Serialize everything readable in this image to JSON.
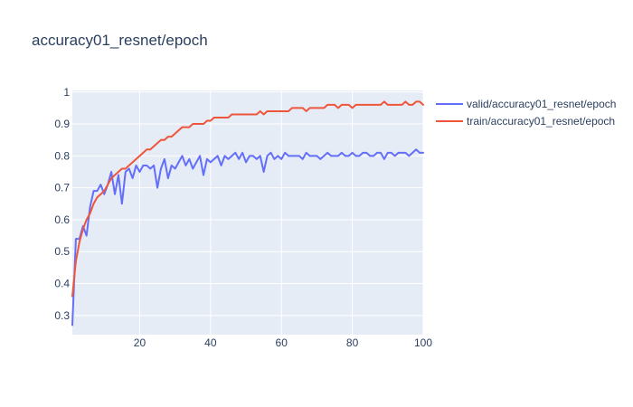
{
  "chart_data": {
    "type": "line",
    "title": "accuracy01_resnet/epoch",
    "xlabel": "",
    "ylabel": "",
    "xlim": [
      1,
      100
    ],
    "ylim": [
      0.24,
      1.005
    ],
    "xticks": [
      20,
      40,
      60,
      80,
      100
    ],
    "yticks": [
      0.3,
      0.4,
      0.5,
      0.6,
      0.7,
      0.8,
      0.9,
      1
    ],
    "grid": true,
    "legend_position": "right",
    "colors": {
      "plot_bg": "#e5ecf6",
      "grid": "#ffffff",
      "text": "#2a3f5f"
    },
    "series": [
      {
        "name": "valid/accuracy01_resnet/epoch",
        "color": "#636efa",
        "x": [
          1,
          2,
          3,
          4,
          5,
          6,
          7,
          8,
          9,
          10,
          11,
          12,
          13,
          14,
          15,
          16,
          17,
          18,
          19,
          20,
          21,
          22,
          23,
          24,
          25,
          26,
          27,
          28,
          29,
          30,
          31,
          32,
          33,
          34,
          35,
          36,
          37,
          38,
          39,
          40,
          41,
          42,
          43,
          44,
          45,
          46,
          47,
          48,
          49,
          50,
          51,
          52,
          53,
          54,
          55,
          56,
          57,
          58,
          59,
          60,
          61,
          62,
          63,
          64,
          65,
          66,
          67,
          68,
          69,
          70,
          71,
          72,
          73,
          74,
          75,
          76,
          77,
          78,
          79,
          80,
          81,
          82,
          83,
          84,
          85,
          86,
          87,
          88,
          89,
          90,
          91,
          92,
          93,
          94,
          95,
          96,
          97,
          98,
          99,
          100
        ],
        "y": [
          0.27,
          0.54,
          0.54,
          0.58,
          0.55,
          0.64,
          0.69,
          0.69,
          0.71,
          0.68,
          0.71,
          0.75,
          0.68,
          0.74,
          0.65,
          0.75,
          0.76,
          0.73,
          0.77,
          0.75,
          0.77,
          0.77,
          0.76,
          0.77,
          0.7,
          0.76,
          0.79,
          0.73,
          0.77,
          0.76,
          0.78,
          0.8,
          0.77,
          0.79,
          0.76,
          0.78,
          0.8,
          0.74,
          0.79,
          0.78,
          0.79,
          0.8,
          0.77,
          0.8,
          0.79,
          0.8,
          0.81,
          0.79,
          0.81,
          0.78,
          0.8,
          0.8,
          0.79,
          0.8,
          0.75,
          0.8,
          0.81,
          0.79,
          0.8,
          0.79,
          0.81,
          0.8,
          0.8,
          0.8,
          0.8,
          0.79,
          0.81,
          0.8,
          0.8,
          0.8,
          0.79,
          0.8,
          0.81,
          0.8,
          0.8,
          0.8,
          0.81,
          0.8,
          0.8,
          0.81,
          0.8,
          0.8,
          0.81,
          0.81,
          0.8,
          0.8,
          0.81,
          0.81,
          0.79,
          0.81,
          0.81,
          0.8,
          0.81,
          0.81,
          0.81,
          0.8,
          0.81,
          0.82,
          0.81,
          0.81
        ]
      },
      {
        "name": "train/accuracy01_resnet/epoch",
        "color": "#ef553b",
        "x": [
          1,
          2,
          3,
          4,
          5,
          6,
          7,
          8,
          9,
          10,
          11,
          12,
          13,
          14,
          15,
          16,
          17,
          18,
          19,
          20,
          21,
          22,
          23,
          24,
          25,
          26,
          27,
          28,
          29,
          30,
          31,
          32,
          33,
          34,
          35,
          36,
          37,
          38,
          39,
          40,
          41,
          42,
          43,
          44,
          45,
          46,
          47,
          48,
          49,
          50,
          51,
          52,
          53,
          54,
          55,
          56,
          57,
          58,
          59,
          60,
          61,
          62,
          63,
          64,
          65,
          66,
          67,
          68,
          69,
          70,
          71,
          72,
          73,
          74,
          75,
          76,
          77,
          78,
          79,
          80,
          81,
          82,
          83,
          84,
          85,
          86,
          87,
          88,
          89,
          90,
          91,
          92,
          93,
          94,
          95,
          96,
          97,
          98,
          99,
          100
        ],
        "y": [
          0.36,
          0.47,
          0.53,
          0.57,
          0.6,
          0.62,
          0.65,
          0.67,
          0.68,
          0.69,
          0.71,
          0.73,
          0.74,
          0.75,
          0.76,
          0.76,
          0.77,
          0.78,
          0.79,
          0.8,
          0.81,
          0.82,
          0.82,
          0.83,
          0.84,
          0.85,
          0.85,
          0.86,
          0.86,
          0.87,
          0.88,
          0.89,
          0.89,
          0.89,
          0.9,
          0.9,
          0.9,
          0.9,
          0.91,
          0.91,
          0.92,
          0.92,
          0.92,
          0.92,
          0.92,
          0.93,
          0.93,
          0.93,
          0.93,
          0.93,
          0.93,
          0.93,
          0.93,
          0.94,
          0.93,
          0.94,
          0.94,
          0.94,
          0.94,
          0.94,
          0.94,
          0.94,
          0.95,
          0.95,
          0.95,
          0.95,
          0.94,
          0.95,
          0.95,
          0.95,
          0.95,
          0.95,
          0.96,
          0.96,
          0.96,
          0.95,
          0.96,
          0.96,
          0.96,
          0.95,
          0.96,
          0.96,
          0.96,
          0.96,
          0.96,
          0.96,
          0.96,
          0.96,
          0.97,
          0.96,
          0.96,
          0.96,
          0.96,
          0.96,
          0.97,
          0.96,
          0.96,
          0.97,
          0.97,
          0.96
        ]
      }
    ]
  }
}
